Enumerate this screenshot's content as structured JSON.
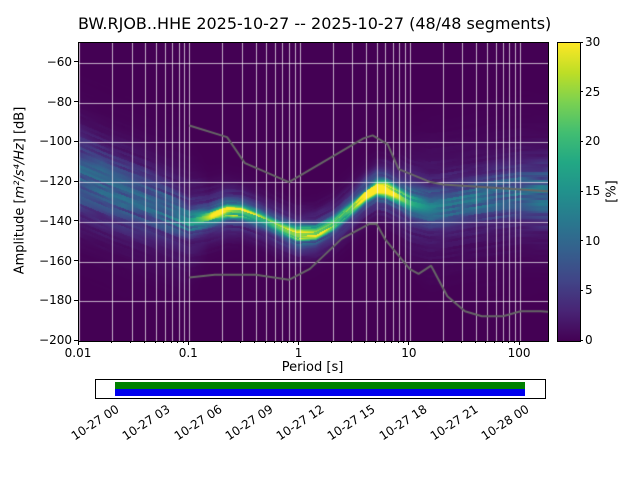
{
  "title": "BW.RJOB..HHE   2025-10-27 -- 2025-10-27  (48/48 segments)",
  "axes": {
    "xlabel": "Period [s]",
    "ylabel_prefix": "Amplitude [",
    "ylabel_units": "m²/s⁴/Hz",
    "ylabel_suffix": "] [dB]"
  },
  "chart_data": {
    "type": "heatmap",
    "title": "BW.RJOB..HHE   2025-10-27 -- 2025-10-27  (48/48 segments)",
    "xlabel": "Period [s]",
    "ylabel": "Amplitude [m²/s⁴/Hz] [dB]",
    "x_scale": "log",
    "xlim": [
      0.01,
      179
    ],
    "ylim": [
      -200,
      -50
    ],
    "xticks": [
      0.01,
      0.1,
      1,
      10,
      100
    ],
    "xtick_labels": [
      "0.01",
      "0.1",
      "1",
      "10",
      "100"
    ],
    "yticks": [
      -200,
      -180,
      -160,
      -140,
      -120,
      -100,
      -80,
      -60
    ],
    "ytick_labels": [
      "−200",
      "−180",
      "−160",
      "−140",
      "−120",
      "−100",
      "−80",
      "−60"
    ],
    "grid": true,
    "grid_color": "#ffffff",
    "background_color": "#440154",
    "colorbar": {
      "label": "[%]",
      "ticks": [
        0,
        5,
        10,
        15,
        20,
        25,
        30
      ],
      "vmin": 0,
      "vmax": 30,
      "colormap": "viridis",
      "stops": [
        [
          0,
          "#440154"
        ],
        [
          0.1,
          "#482475"
        ],
        [
          0.2,
          "#414487"
        ],
        [
          0.3,
          "#355f8d"
        ],
        [
          0.4,
          "#29788e"
        ],
        [
          0.5,
          "#21918c"
        ],
        [
          0.6,
          "#22a884"
        ],
        [
          0.7,
          "#42be71"
        ],
        [
          0.8,
          "#7ad151"
        ],
        [
          0.9,
          "#bdde26"
        ],
        [
          1,
          "#fde725"
        ]
      ]
    },
    "psd_mode_db": [
      [
        0.01,
        -117
      ],
      [
        0.02,
        -124
      ],
      [
        0.035,
        -129
      ],
      [
        0.06,
        -134
      ],
      [
        0.1,
        -139
      ],
      [
        0.15,
        -137.5
      ],
      [
        0.22,
        -134.5
      ],
      [
        0.3,
        -135
      ],
      [
        0.45,
        -138.5
      ],
      [
        0.7,
        -143.5
      ],
      [
        0.95,
        -146.5
      ],
      [
        1.4,
        -146
      ],
      [
        2,
        -141.5
      ],
      [
        3,
        -133
      ],
      [
        4,
        -126.5
      ],
      [
        5,
        -123
      ],
      [
        6,
        -123.5
      ],
      [
        8,
        -127
      ],
      [
        10,
        -130
      ],
      [
        15,
        -132.5
      ],
      [
        22,
        -131.5
      ],
      [
        35,
        -129.5
      ],
      [
        60,
        -127.5
      ],
      [
        100,
        -126
      ],
      [
        179,
        -126
      ]
    ],
    "psd_spread_db": [
      [
        0.01,
        13
      ],
      [
        0.03,
        11
      ],
      [
        0.06,
        8
      ],
      [
        0.1,
        4.5
      ],
      [
        0.15,
        2.6
      ],
      [
        0.3,
        2.2
      ],
      [
        0.7,
        2.2
      ],
      [
        1.5,
        2.2
      ],
      [
        3,
        2.2
      ],
      [
        5,
        2.2
      ],
      [
        8,
        3
      ],
      [
        10,
        4.5
      ],
      [
        15,
        5.5
      ],
      [
        22,
        6.5
      ],
      [
        50,
        7.5
      ],
      [
        100,
        8.5
      ],
      [
        179,
        9.5
      ]
    ],
    "psd_peak_percent": [
      [
        0.01,
        7
      ],
      [
        0.03,
        7
      ],
      [
        0.06,
        8
      ],
      [
        0.1,
        11
      ],
      [
        0.15,
        17
      ],
      [
        0.2,
        23
      ],
      [
        0.3,
        23
      ],
      [
        0.5,
        19
      ],
      [
        0.7,
        23
      ],
      [
        1,
        27
      ],
      [
        1.5,
        23
      ],
      [
        2,
        21
      ],
      [
        3,
        21
      ],
      [
        4,
        25
      ],
      [
        5,
        30
      ],
      [
        6,
        26
      ],
      [
        8,
        18
      ],
      [
        10,
        13
      ],
      [
        15,
        10
      ],
      [
        22,
        9
      ],
      [
        35,
        8
      ],
      [
        60,
        8
      ],
      [
        100,
        8
      ],
      [
        179,
        8
      ]
    ],
    "noise_models": {
      "color": "#666666",
      "low_model": [
        [
          0.1,
          -168.0
        ],
        [
          0.17,
          -166.7
        ],
        [
          0.4,
          -166.7
        ],
        [
          0.8,
          -169.2
        ],
        [
          1.24,
          -163.7
        ],
        [
          2.4,
          -148.6
        ],
        [
          4.3,
          -141.1
        ],
        [
          5.0,
          -141.1
        ],
        [
          6.0,
          -149.0
        ],
        [
          10.0,
          -163.8
        ],
        [
          12.0,
          -166.2
        ],
        [
          15.6,
          -162.1
        ],
        [
          21.9,
          -177.5
        ],
        [
          31.6,
          -185.0
        ],
        [
          45.0,
          -187.5
        ],
        [
          70.0,
          -187.5
        ],
        [
          101.0,
          -185.0
        ],
        [
          154.0,
          -185.0
        ],
        [
          179.0,
          -185.3
        ]
      ],
      "high_model": [
        [
          0.1,
          -91.5
        ],
        [
          0.22,
          -97.4
        ],
        [
          0.32,
          -110.5
        ],
        [
          0.8,
          -120.0
        ],
        [
          3.8,
          -98.0
        ],
        [
          4.6,
          -96.5
        ],
        [
          6.3,
          -101.0
        ],
        [
          7.9,
          -113.5
        ],
        [
          15.4,
          -120.0
        ],
        [
          20.0,
          -121.2
        ],
        [
          179.0,
          -124.6
        ]
      ]
    }
  },
  "timeline": {
    "labels": [
      "10-27 00",
      "10-27 03",
      "10-27 06",
      "10-27 09",
      "10-27 12",
      "10-27 15",
      "10-27 18",
      "10-27 21",
      "10-28 00"
    ],
    "coverage_top_color": "#008000",
    "coverage_bottom_color": "#0000ee",
    "bar_border_color": "#000000"
  }
}
